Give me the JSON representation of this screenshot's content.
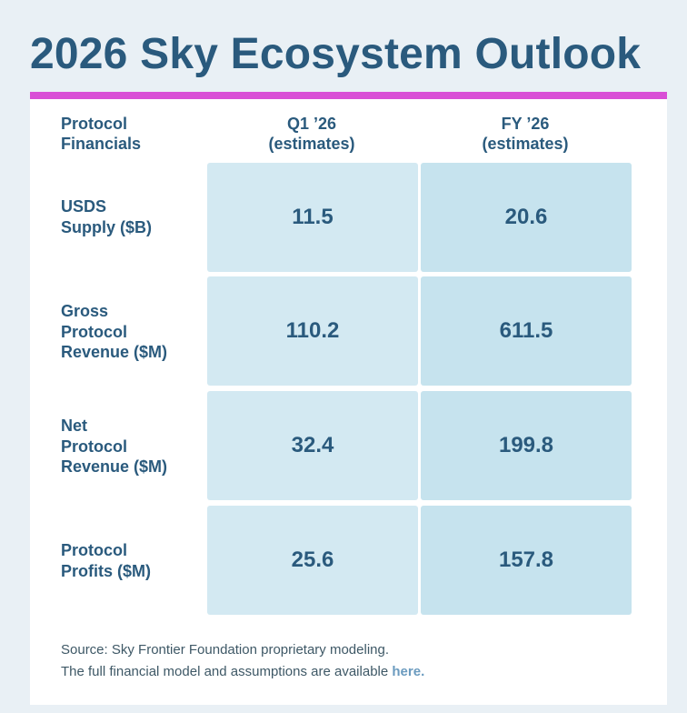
{
  "title": "2026 Sky Ecosystem Outlook",
  "colors": {
    "accent": "#d94fd6",
    "heading": "#2a5a7d",
    "cell_q1": "#d3e9f2",
    "cell_fy": "#c6e3ee",
    "link": "#6b9bbf"
  },
  "table": {
    "header": {
      "rows_label": [
        "Protocol",
        "Financials"
      ],
      "columns": [
        {
          "line1": "Q1 ’26",
          "line2": "(estimates)"
        },
        {
          "line1": "FY ’26",
          "line2": "(estimates)"
        }
      ]
    },
    "rows": [
      {
        "label_lines": [
          "USDS",
          "Supply ($B)"
        ],
        "q1": "11.5",
        "fy": "20.6"
      },
      {
        "label_lines": [
          "Gross",
          "Protocol",
          "Revenue ($M)"
        ],
        "q1": "110.2",
        "fy": "611.5"
      },
      {
        "label_lines": [
          "Net",
          "Protocol",
          "Revenue ($M)"
        ],
        "q1": "32.4",
        "fy": "199.8"
      },
      {
        "label_lines": [
          "Protocol",
          "Profits ($M)"
        ],
        "q1": "25.6",
        "fy": "157.8"
      }
    ]
  },
  "footer": {
    "source": "Source: Sky Frontier Foundation proprietary modeling.",
    "model_text": "The full financial model and assumptions are available",
    "link_text": "here."
  }
}
